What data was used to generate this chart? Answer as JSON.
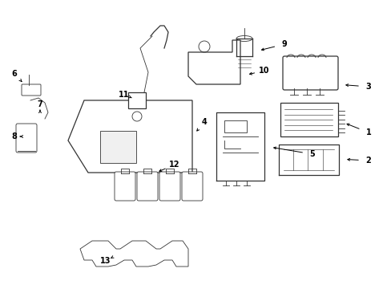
{
  "bg_color": "#ffffff",
  "line_color": "#333333",
  "label_color": "#000000",
  "arrow_color": "#000000",
  "figsize": [
    4.89,
    3.6
  ],
  "dpi": 100
}
